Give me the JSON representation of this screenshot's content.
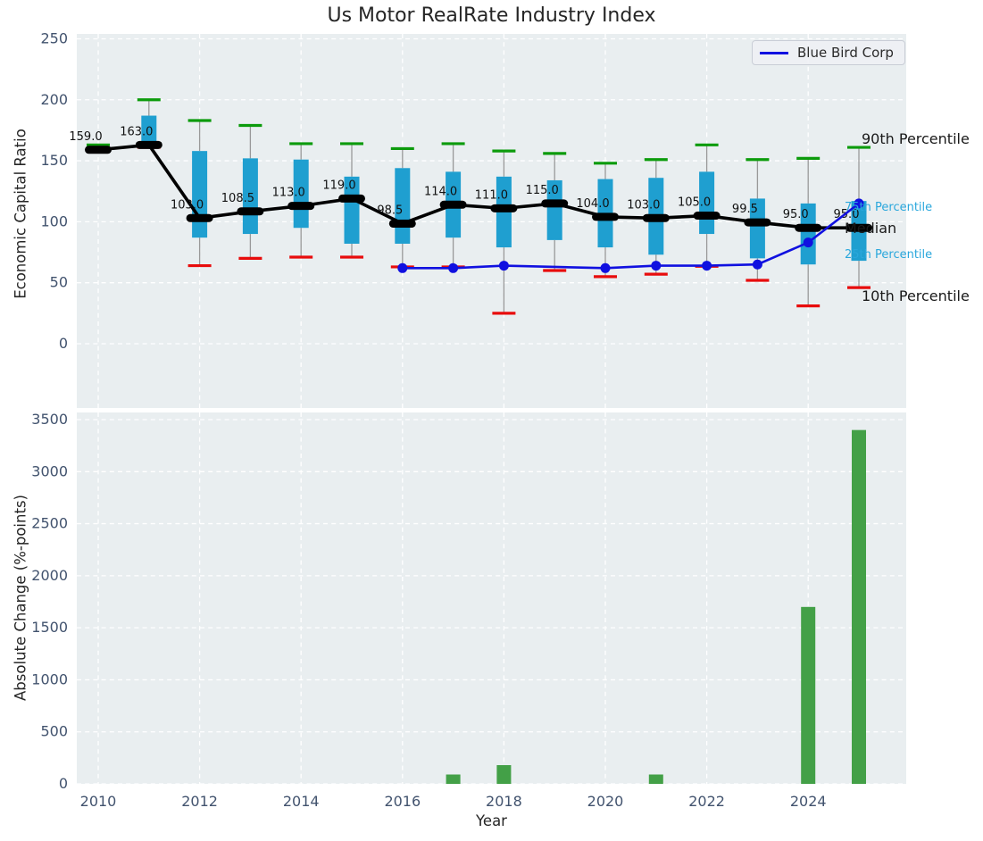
{
  "title": "Us Motor RealRate Industry Index",
  "legend": {
    "label": "Blue Bird Corp"
  },
  "style": {
    "axes_bg": "#e9eef0",
    "grid": "#ffffff",
    "box_fill": "#1f9fd0",
    "whisker": "#999999",
    "cap_high": "#0c9b0c",
    "cap_low": "#e80c0c",
    "median": "#000000",
    "company_line": "#1010e0",
    "bar_fill": "#43a047",
    "tick_color": "#42536e",
    "label_color": "#262626",
    "median_label_color": "#111111",
    "annotation_cyan": "#2aa7dc"
  },
  "chart_data": [
    {
      "type": "boxplot+line",
      "title": "Us Motor RealRate Industry Index",
      "ylabel": "Economic Capital Ratio",
      "ylim": [
        -50,
        255
      ],
      "yticks": [
        0,
        50,
        100,
        150,
        200,
        250
      ],
      "grid": true,
      "legend_position": "upper right",
      "years": [
        2010,
        2011,
        2012,
        2013,
        2014,
        2015,
        2016,
        2017,
        2018,
        2019,
        2020,
        2021,
        2022,
        2023,
        2024,
        2025
      ],
      "median": [
        159.0,
        163.0,
        103.0,
        108.5,
        113.0,
        119.0,
        98.5,
        114.0,
        111.0,
        115.0,
        104.0,
        103.0,
        105.0,
        99.5,
        95.0,
        95.0
      ],
      "median_labels": [
        "159.0",
        "163.0",
        "103.0",
        "108.5",
        "113.0",
        "119.0",
        "98.5",
        "114.0",
        "111.0",
        "115.0",
        "104.0",
        "103.0",
        "105.0",
        "99.5",
        "95.0",
        "95.0"
      ],
      "p90": [
        163,
        200,
        183,
        179,
        164,
        164,
        160,
        164,
        158,
        156,
        148,
        151,
        163,
        151,
        152,
        161
      ],
      "p75": [
        161,
        187,
        158,
        152,
        151,
        137,
        144,
        141,
        137,
        134,
        135,
        136,
        141,
        119,
        115,
        117
      ],
      "p25": [
        157,
        162,
        87,
        90,
        95,
        82,
        82,
        87,
        79,
        85,
        79,
        73,
        90,
        70,
        65,
        68
      ],
      "p10": [
        158,
        161,
        64,
        70,
        71,
        71,
        63,
        63,
        25,
        60,
        55,
        57,
        63.5,
        52,
        31,
        46
      ],
      "company_series": {
        "name": "Blue Bird Corp",
        "years": [
          2016,
          2017,
          2018,
          2019,
          2020,
          2021,
          2022,
          2023,
          2024,
          2025
        ],
        "values": [
          62,
          62,
          64,
          63,
          62,
          64,
          64,
          65,
          83,
          115
        ],
        "marker": [
          true,
          true,
          true,
          false,
          true,
          true,
          true,
          true,
          true,
          true
        ]
      },
      "annotations": [
        {
          "label": "90th Percentile",
          "kind": "black"
        },
        {
          "label": "75th Percentile",
          "kind": "cyan"
        },
        {
          "label": "Median",
          "kind": "black"
        },
        {
          "label": "25th Percentile",
          "kind": "cyan"
        },
        {
          "label": "10th Percentile",
          "kind": "black"
        }
      ]
    },
    {
      "type": "bar",
      "ylabel": "Absolute Change (%-points)",
      "xlabel": "Year",
      "ylim": [
        0,
        3570
      ],
      "yticks": [
        0,
        500,
        1000,
        1500,
        2000,
        2500,
        3000,
        3500
      ],
      "xticks": [
        2010,
        2012,
        2014,
        2016,
        2018,
        2020,
        2022,
        2024
      ],
      "grid": true,
      "bars": {
        "years": [
          2017,
          2018,
          2021,
          2024,
          2025
        ],
        "values": [
          90,
          180,
          90,
          1700,
          3400
        ]
      }
    }
  ]
}
